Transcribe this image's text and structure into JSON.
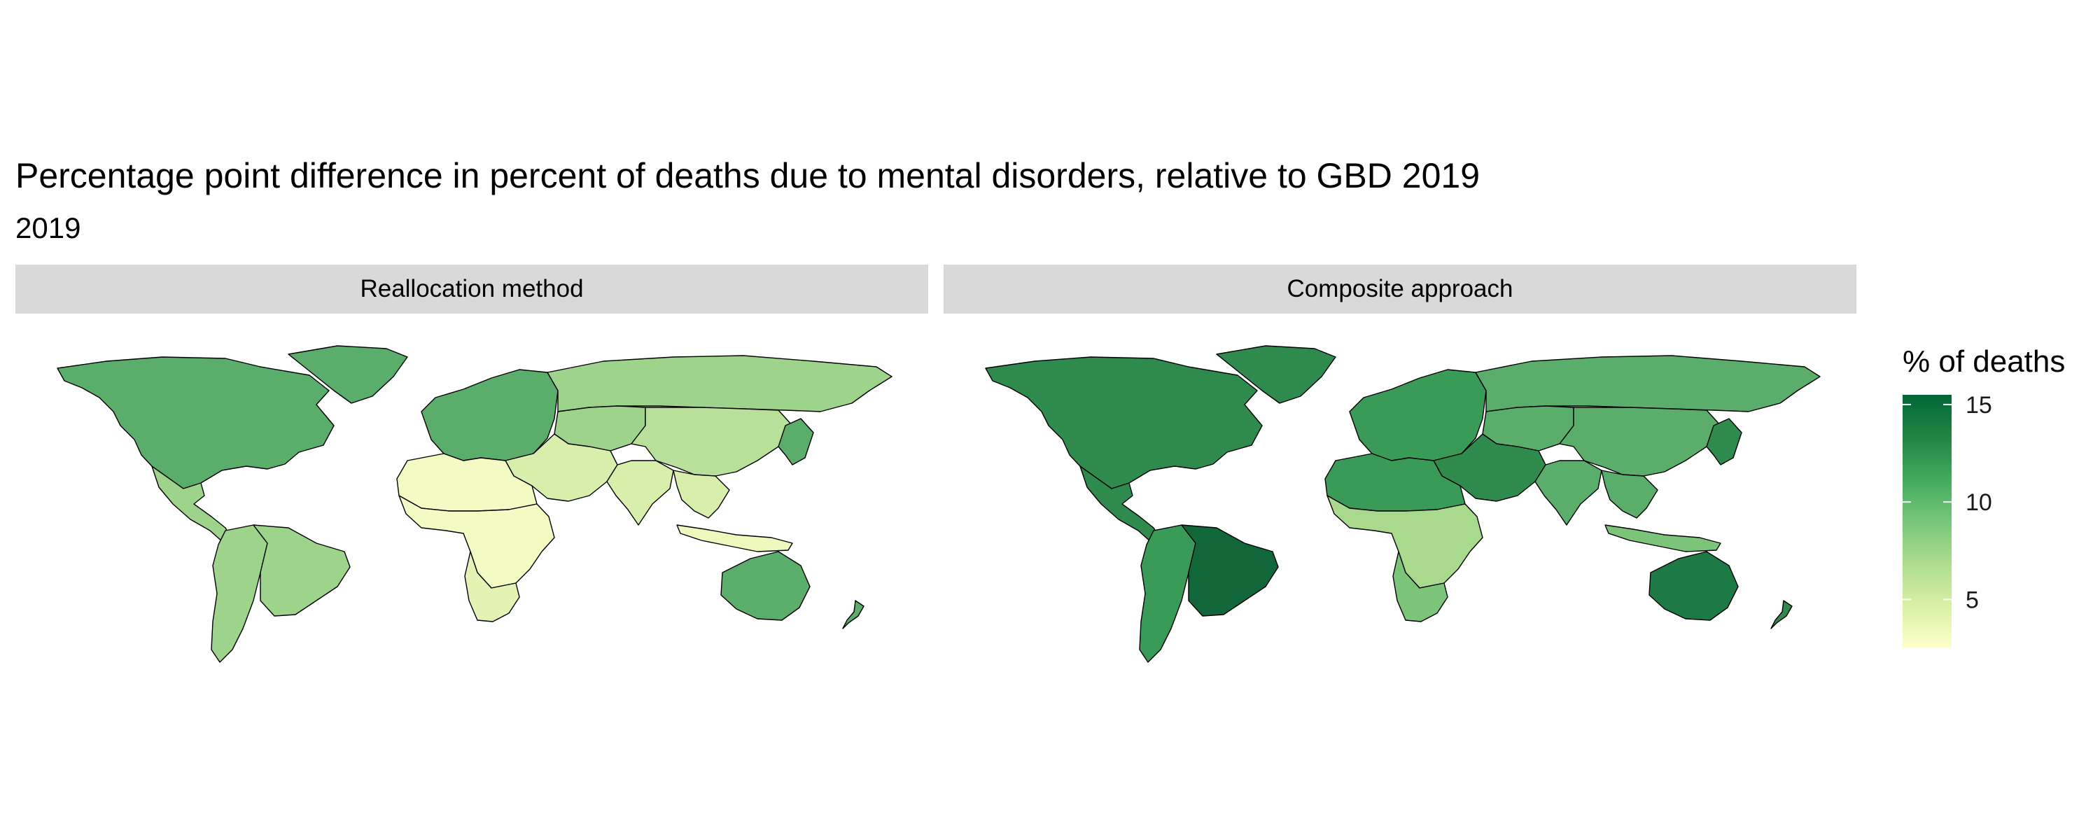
{
  "title": "Percentage point difference in percent of deaths due to mental disorders, relative to GBD 2019",
  "subtitle": "2019",
  "panels": [
    {
      "label": "Reallocation method",
      "fills": {
        "north_america": "#5aad6a",
        "greenland": "#5aad6a",
        "mexico_central": "#9dd38a",
        "south_america": "#9dd38a",
        "brazil": "#9dd38a",
        "europe": "#5aad6a",
        "russia": "#9dd38a",
        "central_asia": "#9dd38a",
        "china": "#b8e09a",
        "japan_korea": "#5aad6a",
        "middle_east": "#d7efaa",
        "north_africa": "#f3fac4",
        "sub_saharan": "#f3fac4",
        "south_africa": "#e4f3b4",
        "india": "#d7efaa",
        "se_asia": "#d7efaa",
        "indonesia": "#eef8bd",
        "australia": "#5aad6a",
        "new_zealand": "#5aad6a"
      }
    },
    {
      "label": "Composite approach",
      "fills": {
        "north_america": "#2e8b4d",
        "greenland": "#2e8b4d",
        "mexico_central": "#2e8b4d",
        "south_america": "#3a9a58",
        "brazil": "#12673a",
        "europe": "#3a9a58",
        "russia": "#5aad6a",
        "central_asia": "#5aad6a",
        "china": "#5aad6a",
        "japan_korea": "#2e8b4d",
        "middle_east": "#2e8b4d",
        "north_africa": "#3a9a58",
        "sub_saharan": "#a8d98c",
        "south_africa": "#7cc47a",
        "india": "#5aad6a",
        "se_asia": "#5aad6a",
        "indonesia": "#7cc47a",
        "australia": "#1d7a44",
        "new_zealand": "#2e8b4d"
      }
    }
  ],
  "legend": {
    "title": "% of deaths",
    "min": 2.5,
    "max": 15.5,
    "ticks": [
      5,
      10,
      15
    ],
    "colors": [
      "#ffffcc",
      "#d9f0a3",
      "#addd8e",
      "#78c679",
      "#41ab5d",
      "#238443",
      "#006837"
    ]
  }
}
